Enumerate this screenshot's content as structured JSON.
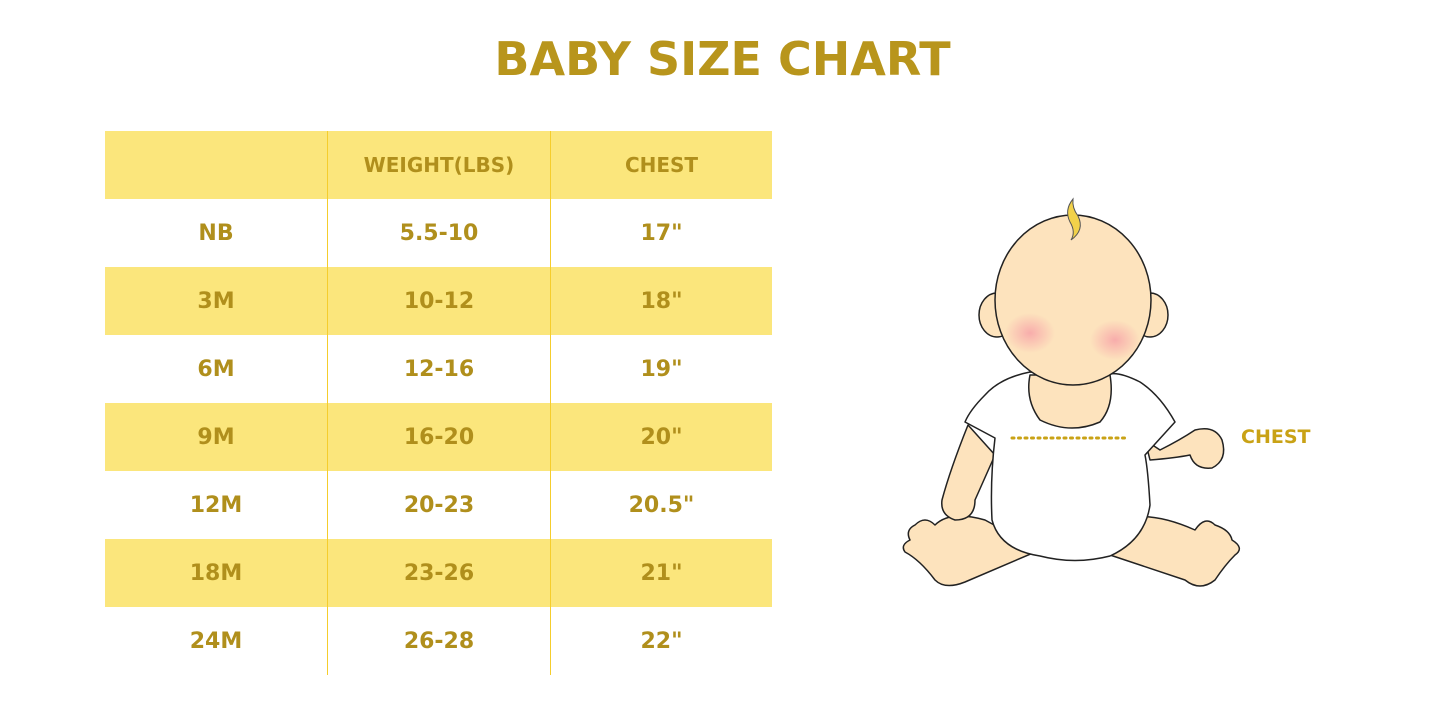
{
  "title": "BABY SIZE CHART",
  "table": {
    "headers": [
      "",
      "WEIGHT(LBS)",
      "CHEST"
    ],
    "rows": [
      [
        "NB",
        "5.5-10",
        "17\""
      ],
      [
        "3M",
        "10-12",
        "18\""
      ],
      [
        "6M",
        "12-16",
        "19\""
      ],
      [
        "9M",
        "16-20",
        "20\""
      ],
      [
        "12M",
        "20-23",
        "20.5\""
      ],
      [
        "18M",
        "23-26",
        "21\""
      ],
      [
        "24M",
        "26-28",
        "22\""
      ]
    ]
  },
  "illustration": {
    "label": "CHEST"
  },
  "colors": {
    "text": "#b08f1c",
    "stripe": "#fbe67c",
    "divider": "#f5cd2c",
    "skin": "#fde3bd"
  }
}
